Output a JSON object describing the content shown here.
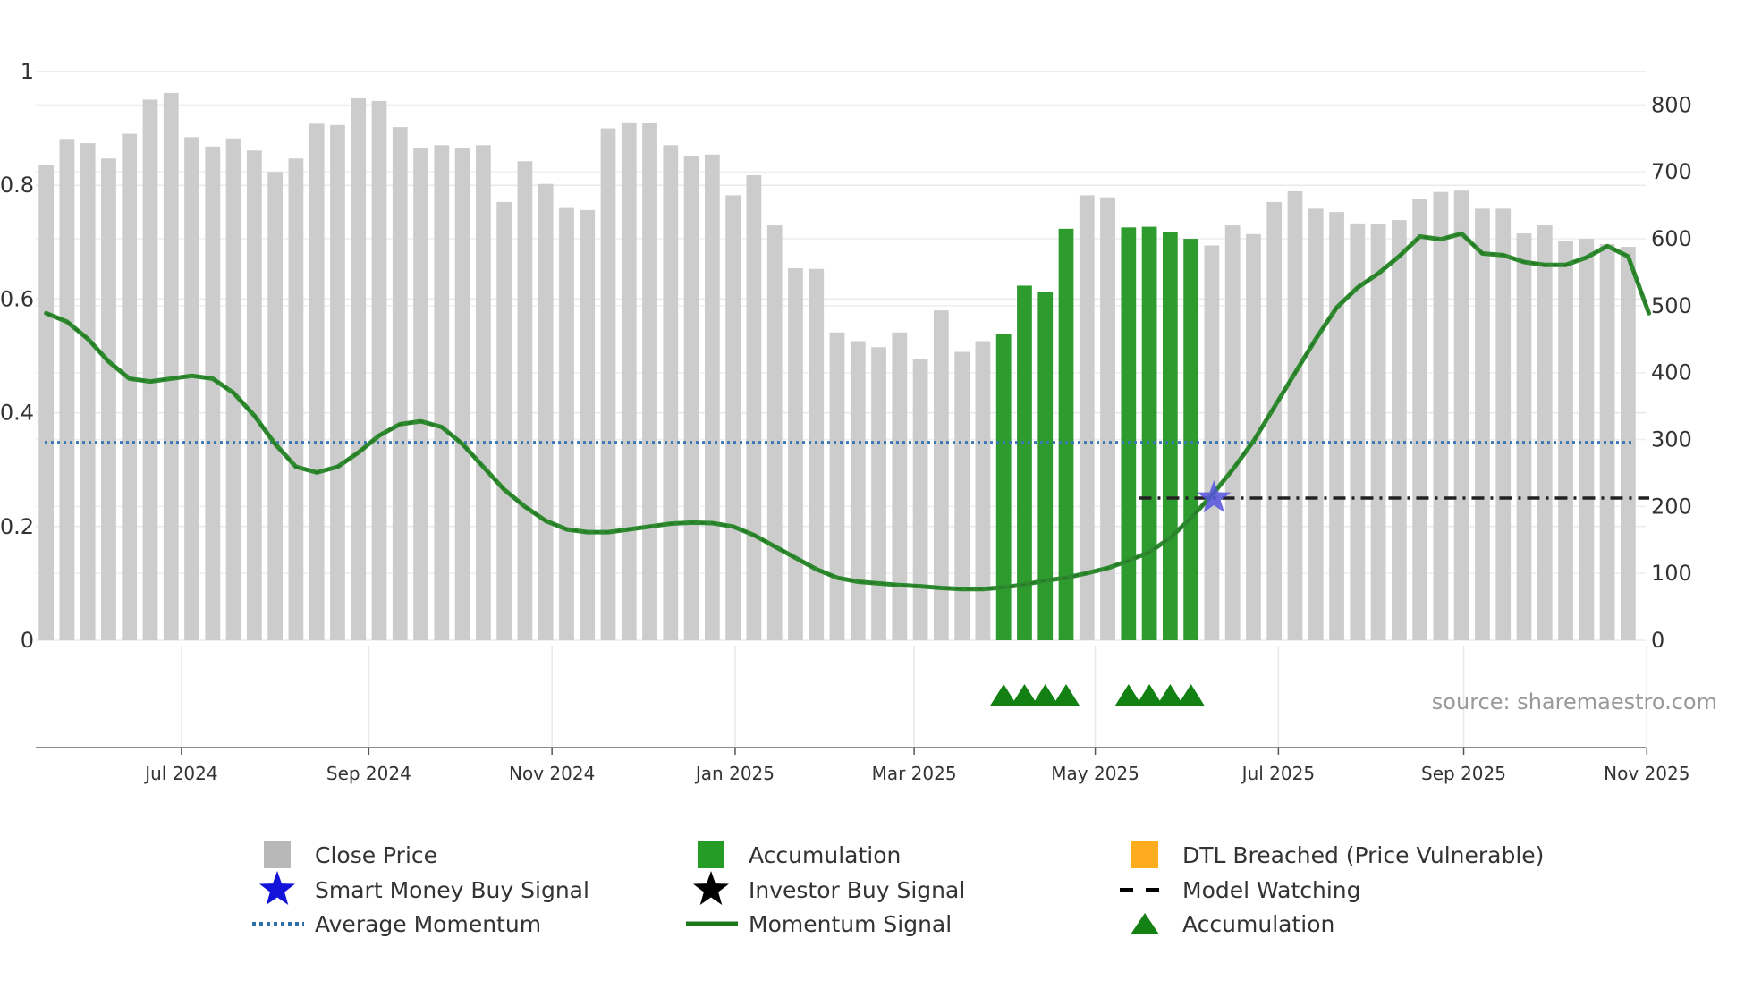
{
  "chart_data": {
    "type": "bar",
    "title": "",
    "source_text": "source: sharemaestro.com",
    "y_left": {
      "ylim": [
        0,
        1
      ],
      "ticks": [
        "0",
        "0.2",
        "0.4",
        "0.6",
        "0.8",
        "1"
      ]
    },
    "y_right": {
      "ylim": [
        0,
        850
      ],
      "ticks": [
        "0",
        "100",
        "200",
        "300",
        "400",
        "500",
        "600",
        "700",
        "800"
      ]
    },
    "x_ticks": [
      {
        "label": "Jul 2024",
        "week": 6.5
      },
      {
        "label": "Sep 2024",
        "week": 15.5
      },
      {
        "label": "Nov 2024",
        "week": 24.3
      },
      {
        "label": "Jan 2025",
        "week": 33.1
      },
      {
        "label": "Mar 2025",
        "week": 41.7
      },
      {
        "label": "May 2025",
        "week": 50.4
      },
      {
        "label": "Jul 2025",
        "week": 59.2
      },
      {
        "label": "Sep 2025",
        "week": 68.1
      },
      {
        "label": "Nov 2025",
        "week": 76.9
      }
    ],
    "close_price": [
      710,
      748,
      743,
      720,
      757,
      808,
      818,
      752,
      738,
      750,
      732,
      700,
      720,
      772,
      770,
      810,
      806,
      767,
      735,
      740,
      736,
      740,
      655,
      716,
      682,
      646,
      643,
      765,
      774,
      773,
      740,
      724,
      726,
      665,
      695,
      620,
      556,
      555,
      460,
      447,
      438,
      460,
      420,
      493,
      431,
      447,
      458,
      530,
      520,
      615,
      665,
      662,
      617,
      618,
      610,
      600,
      590,
      620,
      607,
      655,
      671,
      645,
      640,
      623,
      622,
      628,
      660,
      670,
      672,
      645,
      645,
      608,
      620,
      596,
      600,
      592,
      588
    ],
    "accumulation_weeks": [
      46,
      47,
      48,
      49,
      52,
      53,
      54,
      55
    ],
    "accumulation_marker_weeks": [
      46,
      47,
      48,
      49,
      52,
      53,
      54,
      55
    ],
    "momentum_signal": [
      0.575,
      0.56,
      0.53,
      0.49,
      0.46,
      0.455,
      0.46,
      0.465,
      0.46,
      0.435,
      0.395,
      0.345,
      0.305,
      0.295,
      0.305,
      0.33,
      0.36,
      0.38,
      0.385,
      0.375,
      0.345,
      0.305,
      0.265,
      0.235,
      0.21,
      0.195,
      0.19,
      0.19,
      0.195,
      0.2,
      0.205,
      0.207,
      0.206,
      0.2,
      0.185,
      0.165,
      0.145,
      0.125,
      0.11,
      0.103,
      0.1,
      0.097,
      0.095,
      0.092,
      0.09,
      0.09,
      0.093,
      0.098,
      0.105,
      0.11,
      0.118,
      0.127,
      0.14,
      0.155,
      0.18,
      0.215,
      0.255,
      0.3,
      0.35,
      0.41,
      0.47,
      0.53,
      0.585,
      0.62,
      0.645,
      0.675,
      0.71,
      0.705,
      0.715,
      0.68,
      0.677,
      0.665,
      0.66,
      0.66,
      0.673,
      0.693,
      0.675,
      0.575
    ],
    "average_momentum": 0.348,
    "model_watching": {
      "value": 0.25,
      "start_week": 52.5,
      "end_week": 76.5
    },
    "smart_money_buy_signal": {
      "week": 56.1,
      "value": 0.25
    },
    "legend": [
      {
        "label": "Close Price",
        "symbol": "square",
        "color": "#b8b8b8"
      },
      {
        "label": "Accumulation",
        "symbol": "square",
        "color": "#259c25"
      },
      {
        "label": "DTL Breached (Price Vulnerable)",
        "symbol": "square",
        "color": "#ffad1f"
      },
      {
        "label": "Smart Money Buy Signal",
        "symbol": "star",
        "color": "#1313d9"
      },
      {
        "label": "Investor Buy Signal",
        "symbol": "star",
        "color": "#000000"
      },
      {
        "label": "Model Watching",
        "symbol": "dash",
        "color": "#000000"
      },
      {
        "label": "Average Momentum",
        "symbol": "dot",
        "color": "#2f6fa8"
      },
      {
        "label": "Momentum Signal",
        "symbol": "line",
        "color": "#1c7a1c"
      },
      {
        "label": "Accumulation",
        "symbol": "triangle",
        "color": "#138013"
      }
    ],
    "colors": {
      "bar": "#cccccc",
      "accumulation_bar": "#2e9b2e",
      "momentum_line": "#2e8a2e",
      "momentum_inner": "#1a5c1a",
      "avg_line": "#3a78b5",
      "watch_line": "#222222",
      "triangle": "#138013",
      "star": "#5555dd"
    }
  }
}
